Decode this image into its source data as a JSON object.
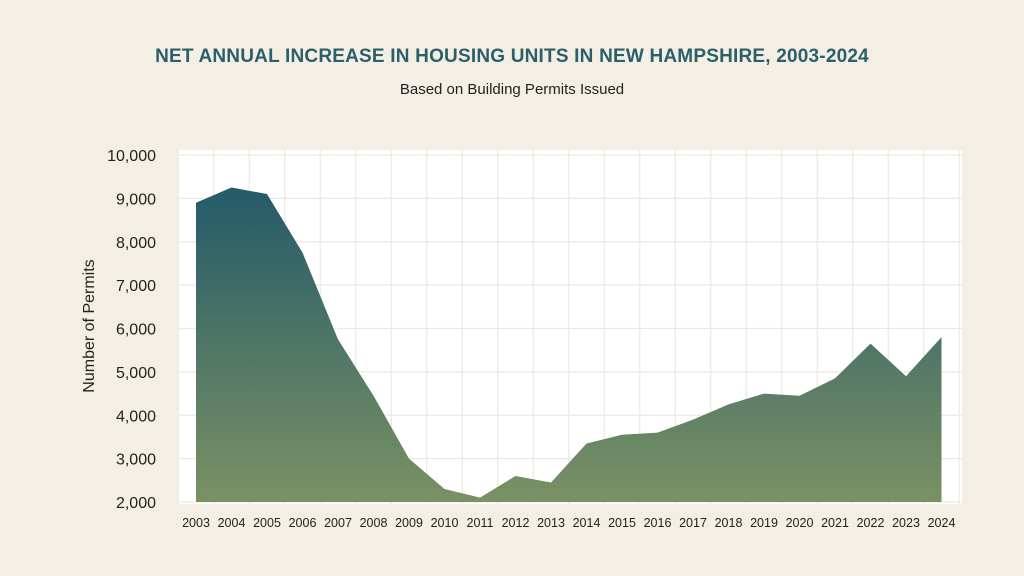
{
  "chart_data": {
    "type": "area",
    "title": "NET ANNUAL INCREASE IN HOUSING UNITS IN NEW HAMPSHIRE, 2003-2024",
    "subtitle": "Based on Building Permits Issued",
    "xlabel": "",
    "ylabel": "Number of Permits",
    "x": [
      "2003",
      "2004",
      "2005",
      "2006",
      "2007",
      "2008",
      "2009",
      "2010",
      "2011",
      "2012",
      "2013",
      "2014",
      "2015",
      "2016",
      "2017",
      "2018",
      "2019",
      "2020",
      "2021",
      "2022",
      "2023",
      "2024"
    ],
    "values": [
      8900,
      9250,
      9100,
      7750,
      5750,
      4450,
      3000,
      2300,
      2100,
      2600,
      2450,
      3350,
      3550,
      3600,
      3900,
      4250,
      4500,
      4450,
      4850,
      5650,
      4900,
      5800
    ],
    "ylim": [
      2000,
      10000
    ],
    "yticks": [
      "2,000",
      "3,000",
      "4,000",
      "5,000",
      "6,000",
      "7,000",
      "8,000",
      "9,000",
      "10,000"
    ],
    "grid": true,
    "legend": "none",
    "colors": {
      "fill_top": "#245a6a",
      "fill_bottom": "#7a9163",
      "title": "#2c5f6a",
      "background": "#f3efe4",
      "plot_background": "#ffffff",
      "grid": "#ece9e0"
    }
  }
}
